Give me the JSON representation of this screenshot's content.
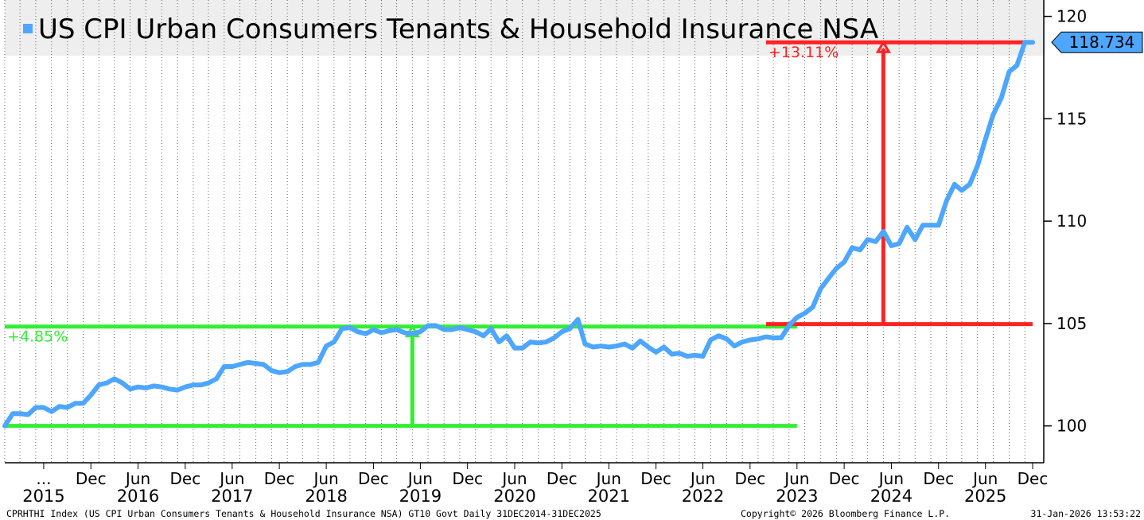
{
  "chart_data": {
    "type": "line",
    "title": "US CPI Urban Consumers Tenants & Household Insurance NSA",
    "ylim": [
      98.2,
      120.8
    ],
    "y_ticks": [
      100,
      105,
      110,
      115,
      120
    ],
    "x_ticks": [
      {
        "label": "...",
        "date": "2015-06-01"
      },
      {
        "label": "Dec",
        "date": "2015-12-01"
      },
      {
        "label": "Jun",
        "date": "2016-06-01"
      },
      {
        "label": "Dec",
        "date": "2016-12-01"
      },
      {
        "label": "Jun",
        "date": "2017-06-01"
      },
      {
        "label": "Dec",
        "date": "2017-12-01"
      },
      {
        "label": "Jun",
        "date": "2018-06-01"
      },
      {
        "label": "Dec",
        "date": "2018-12-01"
      },
      {
        "label": "Jun",
        "date": "2019-06-01"
      },
      {
        "label": "Dec",
        "date": "2019-12-01"
      },
      {
        "label": "Jun",
        "date": "2020-06-01"
      },
      {
        "label": "Dec",
        "date": "2020-12-01"
      },
      {
        "label": "Jun",
        "date": "2021-06-01"
      },
      {
        "label": "Dec",
        "date": "2021-12-01"
      },
      {
        "label": "Jun",
        "date": "2022-06-01"
      },
      {
        "label": "Dec",
        "date": "2022-12-01"
      },
      {
        "label": "Jun",
        "date": "2023-06-01"
      },
      {
        "label": "Dec",
        "date": "2023-12-01"
      },
      {
        "label": "Jun",
        "date": "2024-06-01"
      },
      {
        "label": "Dec",
        "date": "2024-12-01"
      },
      {
        "label": "Jun",
        "date": "2025-06-01"
      },
      {
        "label": "Dec",
        "date": "2025-12-01"
      }
    ],
    "years": [
      {
        "label": "2015",
        "date": "2015-06-01"
      },
      {
        "label": "2016",
        "date": "2016-06-01"
      },
      {
        "label": "2017",
        "date": "2017-06-01"
      },
      {
        "label": "2018",
        "date": "2018-06-01"
      },
      {
        "label": "2019",
        "date": "2019-06-01"
      },
      {
        "label": "2020",
        "date": "2020-06-01"
      },
      {
        "label": "2021",
        "date": "2021-06-01"
      },
      {
        "label": "2022",
        "date": "2022-06-01"
      },
      {
        "label": "2023",
        "date": "2023-06-01"
      },
      {
        "label": "2024",
        "date": "2024-06-01"
      },
      {
        "label": "2025",
        "date": "2025-06-01"
      }
    ],
    "x": [
      "2015-01-01",
      "2015-02-01",
      "2015-03-01",
      "2015-04-01",
      "2015-05-01",
      "2015-06-01",
      "2015-07-01",
      "2015-08-01",
      "2015-09-01",
      "2015-10-01",
      "2015-11-01",
      "2015-12-01",
      "2016-01-01",
      "2016-02-01",
      "2016-03-01",
      "2016-04-01",
      "2016-05-01",
      "2016-06-01",
      "2016-07-01",
      "2016-08-01",
      "2016-09-01",
      "2016-10-01",
      "2016-11-01",
      "2016-12-01",
      "2017-01-01",
      "2017-02-01",
      "2017-03-01",
      "2017-04-01",
      "2017-05-01",
      "2017-06-01",
      "2017-07-01",
      "2017-08-01",
      "2017-09-01",
      "2017-10-01",
      "2017-11-01",
      "2017-12-01",
      "2018-01-01",
      "2018-02-01",
      "2018-03-01",
      "2018-04-01",
      "2018-05-01",
      "2018-06-01",
      "2018-07-01",
      "2018-08-01",
      "2018-09-01",
      "2018-10-01",
      "2018-11-01",
      "2018-12-01",
      "2019-01-01",
      "2019-02-01",
      "2019-03-01",
      "2019-04-01",
      "2019-05-01",
      "2019-06-01",
      "2019-07-01",
      "2019-08-01",
      "2019-09-01",
      "2019-10-01",
      "2019-11-01",
      "2019-12-01",
      "2020-01-01",
      "2020-02-01",
      "2020-03-01",
      "2020-04-01",
      "2020-05-01",
      "2020-06-01",
      "2020-07-01",
      "2020-08-01",
      "2020-09-01",
      "2020-10-01",
      "2020-11-01",
      "2020-12-01",
      "2021-01-01",
      "2021-02-01",
      "2021-03-01",
      "2021-04-01",
      "2021-05-01",
      "2021-06-01",
      "2021-07-01",
      "2021-08-01",
      "2021-09-01",
      "2021-10-01",
      "2021-11-01",
      "2021-12-01",
      "2022-01-01",
      "2022-02-01",
      "2022-03-01",
      "2022-04-01",
      "2022-05-01",
      "2022-06-01",
      "2022-07-01",
      "2022-08-01",
      "2022-09-01",
      "2022-10-01",
      "2022-11-01",
      "2022-12-01",
      "2023-01-01",
      "2023-02-01",
      "2023-03-01",
      "2023-04-01",
      "2023-05-01",
      "2023-06-01",
      "2023-07-01",
      "2023-08-01",
      "2023-09-01",
      "2023-10-01",
      "2023-11-01",
      "2023-12-01",
      "2024-01-01",
      "2024-02-01",
      "2024-03-01",
      "2024-04-01",
      "2024-05-01",
      "2024-06-01",
      "2024-07-01",
      "2024-08-01",
      "2024-09-01",
      "2024-10-01",
      "2024-11-01",
      "2024-12-01",
      "2025-01-01",
      "2025-02-01",
      "2025-03-01",
      "2025-04-01",
      "2025-05-01",
      "2025-06-01",
      "2025-07-01",
      "2025-08-01",
      "2025-09-01",
      "2025-10-01",
      "2025-11-01",
      "2025-12-01"
    ],
    "values": [
      100.0,
      100.6,
      100.6,
      100.55,
      100.9,
      100.9,
      100.7,
      100.95,
      100.9,
      101.1,
      101.1,
      101.5,
      102.0,
      102.1,
      102.3,
      102.1,
      101.8,
      101.9,
      101.85,
      101.95,
      101.9,
      101.8,
      101.75,
      101.9,
      102.0,
      102.0,
      102.1,
      102.3,
      102.9,
      102.9,
      103.0,
      103.1,
      103.05,
      103.0,
      102.7,
      102.6,
      102.65,
      102.9,
      103.0,
      103.0,
      103.1,
      103.9,
      104.1,
      104.75,
      104.8,
      104.6,
      104.5,
      104.7,
      104.55,
      104.65,
      104.7,
      104.55,
      104.5,
      104.6,
      104.9,
      104.9,
      104.7,
      104.7,
      104.8,
      104.7,
      104.6,
      104.4,
      104.75,
      104.1,
      104.4,
      103.8,
      103.8,
      104.1,
      104.05,
      104.1,
      104.3,
      104.6,
      104.75,
      105.2,
      104.0,
      103.85,
      103.9,
      103.85,
      103.9,
      104.0,
      103.8,
      104.15,
      103.85,
      103.6,
      103.85,
      103.5,
      103.55,
      103.4,
      103.45,
      103.4,
      104.2,
      104.4,
      104.25,
      103.9,
      104.1,
      104.2,
      104.25,
      104.35,
      104.3,
      104.3,
      104.9,
      105.3,
      105.5,
      105.8,
      106.7,
      107.2,
      107.7,
      108.0,
      108.7,
      108.6,
      109.1,
      109.0,
      109.5,
      108.8,
      108.9,
      109.7,
      109.1,
      109.8,
      109.8,
      109.8,
      111.0,
      111.8,
      111.5,
      111.8,
      112.7,
      114.0,
      115.2,
      116.0,
      117.3,
      117.6,
      118.734,
      118.734
    ],
    "line_color": "#4da6ff",
    "last_value_label": "118.734",
    "annotations": [
      {
        "label": "+4.85%",
        "color": "#33ee33",
        "y_low": 100.0,
        "y_high": 104.85,
        "x_start": "2015-01-01",
        "x_end": "2023-06-01",
        "arrow_x": "2019-05-01",
        "label_x": "2015-01-01"
      },
      {
        "label": "+13.11%",
        "color": "#ff2222",
        "y_low": 104.97,
        "y_high": 118.734,
        "x_start": "2023-02-01",
        "x_end": "2025-12-01",
        "arrow_x": "2024-05-01",
        "label_x": "2023-02-01"
      }
    ],
    "grid": "vertical-dotted",
    "legend": "top-left"
  },
  "footer": {
    "left": "CPRHTHI Index (US CPI Urban Consumers Tenants & Household Insurance NSA) GT10  Govt Daily 31DEC2014-31DEC2025",
    "center": "Copyright© 2026 Bloomberg Finance L.P.",
    "right": "31-Jan-2026 13:53:22"
  }
}
